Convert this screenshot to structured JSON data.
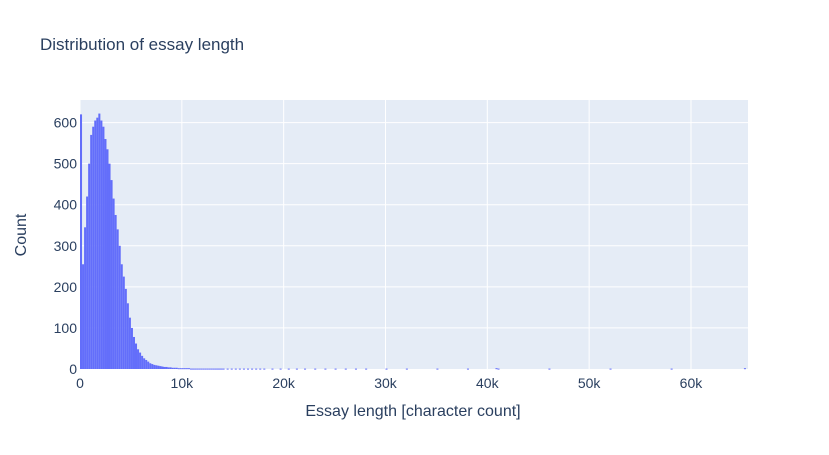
{
  "chart_data": {
    "type": "bar",
    "title": "Distribution of essay length",
    "xlabel": "Essay length [character count]",
    "ylabel": "Count",
    "xlim": [
      0,
      65600
    ],
    "ylim": [
      0,
      655
    ],
    "grid": true,
    "x_ticks": [
      0,
      10000,
      20000,
      30000,
      40000,
      50000,
      60000
    ],
    "x_tick_labels": [
      "0",
      "10k",
      "20k",
      "30k",
      "40k",
      "50k",
      "60k"
    ],
    "y_ticks": [
      0,
      100,
      200,
      300,
      400,
      500,
      600
    ],
    "y_tick_labels": [
      "0",
      "100",
      "200",
      "300",
      "400",
      "500",
      "600"
    ],
    "bin_width": 200,
    "x": [
      0,
      200,
      400,
      600,
      800,
      1000,
      1200,
      1400,
      1600,
      1800,
      2000,
      2200,
      2400,
      2600,
      2800,
      3000,
      3200,
      3400,
      3600,
      3800,
      4000,
      4200,
      4400,
      4600,
      4800,
      5000,
      5200,
      5400,
      5600,
      5800,
      6000,
      6200,
      6400,
      6600,
      6800,
      7000,
      7200,
      7400,
      7600,
      7800,
      8000,
      8200,
      8400,
      8600,
      8800,
      9000,
      9200,
      9400,
      9600,
      9800,
      10000,
      10200,
      10400,
      10600,
      10800,
      11000,
      11200,
      11400,
      11600,
      11800,
      12000,
      12200,
      12400,
      12600,
      12800,
      13000,
      13200,
      13400,
      13600,
      13800,
      14000,
      14400,
      14800,
      15200,
      15600,
      16000,
      16400,
      16800,
      17200,
      17600,
      18000,
      18800,
      19600,
      20400,
      21200,
      22000,
      23000,
      24000,
      25000,
      26000,
      27000,
      28000,
      30000,
      32000,
      35000,
      38000,
      40800,
      41000,
      46000,
      52000,
      58000,
      65200
    ],
    "values": [
      620,
      255,
      345,
      420,
      500,
      570,
      590,
      605,
      612,
      622,
      605,
      590,
      560,
      535,
      500,
      460,
      415,
      375,
      340,
      300,
      255,
      225,
      195,
      160,
      125,
      100,
      78,
      62,
      48,
      40,
      32,
      26,
      22,
      18,
      14,
      12,
      10,
      9,
      8,
      7,
      6,
      5,
      5,
      4,
      4,
      3,
      3,
      3,
      2,
      2,
      2,
      2,
      2,
      2,
      1,
      1,
      1,
      1,
      1,
      1,
      1,
      1,
      1,
      1,
      1,
      1,
      1,
      1,
      1,
      1,
      1,
      1,
      1,
      1,
      1,
      1,
      1,
      1,
      1,
      1,
      1,
      1,
      1,
      1,
      1,
      1,
      1,
      1,
      1,
      1,
      1,
      1,
      1,
      1,
      1,
      1,
      2,
      1,
      1,
      1,
      1,
      2
    ],
    "colors": {
      "bar": "#636efa",
      "plot_bg": "#e5ecf6",
      "grid": "#ffffff",
      "text": "#2a3f5f"
    }
  }
}
